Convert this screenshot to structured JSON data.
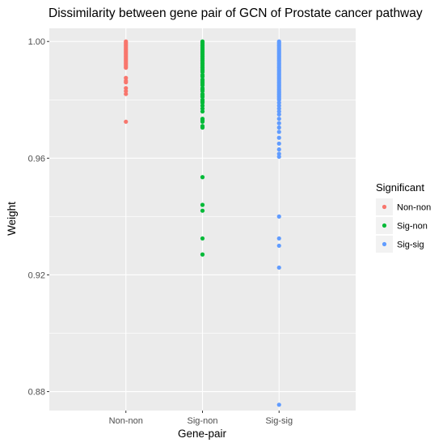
{
  "chart_data": {
    "type": "scatter",
    "title": "Dissimilarity between gene pair of GCN of Prostate cancer pathway",
    "xlabel": "Gene-pair",
    "ylabel": "Weight",
    "categories": [
      "Non-non",
      "Sig-non",
      "Sig-sig"
    ],
    "ylim": [
      0.8735,
      1.0045
    ],
    "yticks": [
      "0.88",
      "0.92",
      "0.96",
      "1.00"
    ],
    "grid": true,
    "legend": {
      "title": "Significant",
      "position": "right",
      "entries": [
        "Non-non",
        "Sig-non",
        "Sig-sig"
      ]
    },
    "series": [
      {
        "name": "Non-non",
        "color": "#F8766D",
        "x": "Non-non",
        "values": [
          1.0,
          0.9995,
          0.999,
          0.9985,
          0.998,
          0.9975,
          0.997,
          0.9965,
          0.996,
          0.9955,
          0.995,
          0.9945,
          0.994,
          0.9935,
          0.993,
          0.9925,
          0.992,
          0.9915,
          0.991,
          0.9875,
          0.9865,
          0.986,
          0.984,
          0.983,
          0.982,
          0.9725
        ]
      },
      {
        "name": "Sig-non",
        "color": "#00BA38",
        "x": "Sig-non",
        "values": [
          1.0,
          0.9995,
          0.999,
          0.9985,
          0.998,
          0.9975,
          0.997,
          0.9965,
          0.996,
          0.9955,
          0.995,
          0.9945,
          0.994,
          0.9935,
          0.993,
          0.9925,
          0.992,
          0.9915,
          0.991,
          0.9905,
          0.99,
          0.9895,
          0.9885,
          0.988,
          0.987,
          0.9865,
          0.986,
          0.9855,
          0.985,
          0.984,
          0.9835,
          0.983,
          0.982,
          0.9815,
          0.981,
          0.98,
          0.9795,
          0.979,
          0.978,
          0.977,
          0.976,
          0.9735,
          0.973,
          0.9725,
          0.971,
          0.9705,
          0.9535,
          0.944,
          0.942,
          0.9325,
          0.927
        ]
      },
      {
        "name": "Sig-sig",
        "color": "#619CFF",
        "x": "Sig-sig",
        "values": [
          1.0,
          0.9995,
          0.999,
          0.9985,
          0.998,
          0.9975,
          0.997,
          0.9965,
          0.996,
          0.9955,
          0.995,
          0.9945,
          0.994,
          0.9935,
          0.993,
          0.9925,
          0.992,
          0.9915,
          0.991,
          0.9905,
          0.99,
          0.9895,
          0.989,
          0.9885,
          0.988,
          0.9875,
          0.987,
          0.9865,
          0.986,
          0.9855,
          0.985,
          0.9845,
          0.984,
          0.9835,
          0.983,
          0.9825,
          0.982,
          0.9815,
          0.981,
          0.9805,
          0.98,
          0.979,
          0.978,
          0.977,
          0.976,
          0.975,
          0.9735,
          0.972,
          0.9705,
          0.969,
          0.967,
          0.965,
          0.963,
          0.9615,
          0.9605,
          0.94,
          0.9325,
          0.93,
          0.9225,
          0.8755
        ]
      }
    ]
  }
}
